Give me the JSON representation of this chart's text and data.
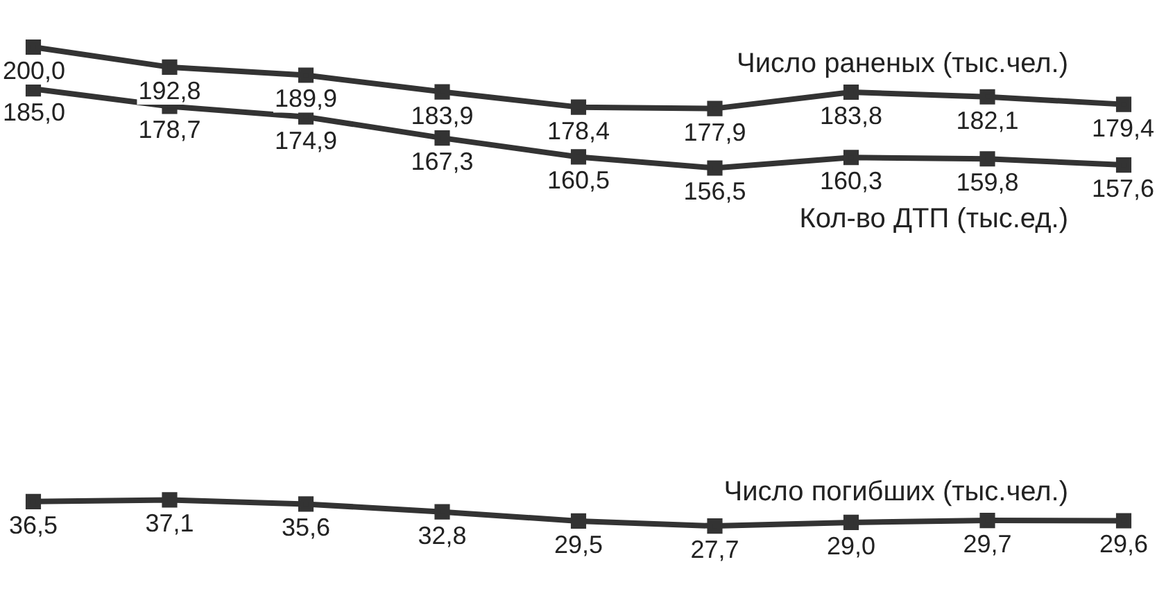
{
  "chart_data": {
    "type": "line",
    "categories": [
      null,
      null,
      null,
      null,
      null,
      null,
      null,
      null,
      null
    ],
    "series": [
      {
        "name": "Кол-во ДТП (тыс.ед.)",
        "color": "#333333",
        "values": [
          185.0,
          178.7,
          174.9,
          167.3,
          160.5,
          156.5,
          160.3,
          159.8,
          157.6
        ],
        "value_labels": [
          "185,0",
          "178,7",
          "174,9",
          "167,3",
          "160,5",
          "156,5",
          "160,3",
          "159,8",
          "157,6"
        ]
      },
      {
        "name": "Число раненых (тыс.чел.)",
        "color": "#333333",
        "values": [
          200.0,
          192.8,
          189.9,
          183.9,
          178.4,
          177.9,
          183.8,
          182.1,
          179.4
        ],
        "value_labels": [
          "200,0",
          "192,8",
          "189,9",
          "183,9",
          "178,4",
          "177,9",
          "183,8",
          "182,1",
          "179,4"
        ]
      },
      {
        "name": "Число погибших (тыс.чел.)",
        "color": "#333333",
        "values": [
          36.5,
          37.1,
          35.6,
          32.8,
          29.5,
          27.7,
          29.0,
          29.7,
          29.6
        ],
        "value_labels": [
          "36,5",
          "37,1",
          "35,6",
          "32,8",
          "29,5",
          "27,7",
          "29,0",
          "29,7",
          "29,6"
        ]
      }
    ],
    "tick_labels": false,
    "grid": false,
    "legend": false,
    "marker": "square",
    "line_style": "solid"
  }
}
